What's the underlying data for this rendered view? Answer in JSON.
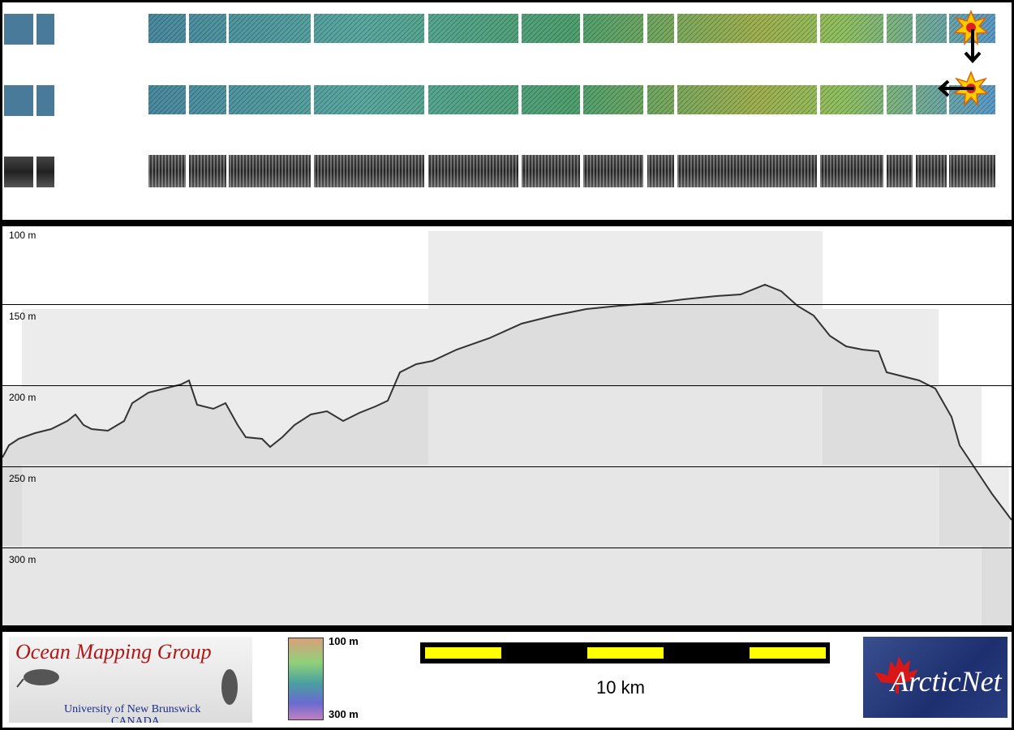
{
  "profile": {
    "depth_labels": [
      "100 m",
      "150 m",
      "200 m",
      "250 m",
      "300 m"
    ]
  },
  "legend": {
    "colorbar_top": "100 m",
    "colorbar_bottom": "300 m"
  },
  "scalebar": {
    "label": "10 km"
  },
  "logos": {
    "ocean_mapping_title": "Ocean Mapping Group",
    "ocean_mapping_sub1": "University of New Brunswick",
    "ocean_mapping_sub2": "CANADA",
    "arcticnet_text": "ArcticNet"
  },
  "colors": {
    "accent_yellow": "#ffff00",
    "ocean_title_red": "#b01818",
    "ocean_sub_blue": "#1a2a8a"
  },
  "icons": [
    "starburst-icon",
    "arrow-down-icon",
    "arrow-left-icon",
    "maple-leaf-icon"
  ]
}
